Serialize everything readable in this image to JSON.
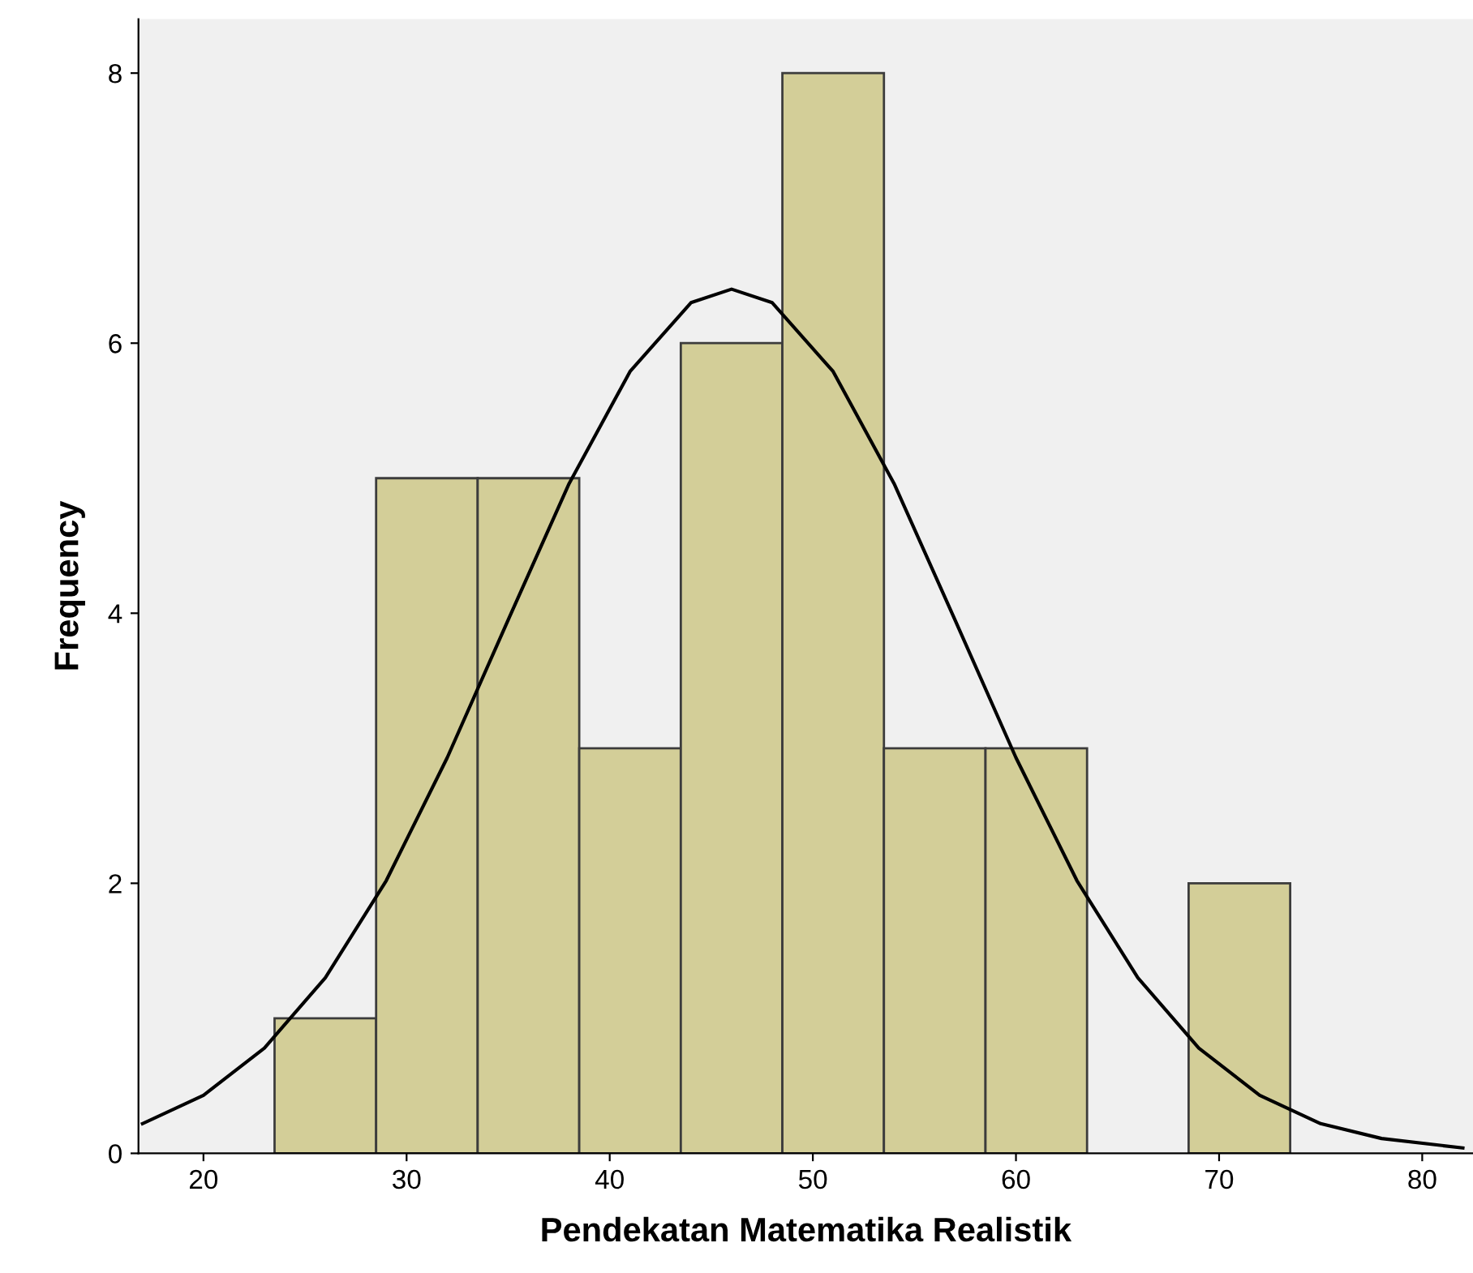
{
  "chart_data": {
    "type": "histogram",
    "xlabel": "Pendekatan Matematika Realistik",
    "ylabel": "Frequency",
    "bins": [
      23.5,
      28.5,
      33.5,
      38.5,
      43.5,
      48.5,
      53.5,
      58.5,
      63.5,
      68.5,
      73.5
    ],
    "values": [
      1,
      5,
      5,
      3,
      6,
      8,
      3,
      3,
      0,
      2
    ],
    "color": "#d3ce98",
    "series": [
      {
        "type": "line",
        "color": "#000000",
        "x": [
          17,
          20,
          23,
          26,
          29,
          32,
          35,
          38,
          41,
          44,
          46,
          48,
          51,
          54,
          57,
          60,
          63,
          66,
          69,
          72,
          75,
          78,
          82
        ],
        "values": [
          0.22,
          0.43,
          0.78,
          1.3,
          2.02,
          2.93,
          3.95,
          4.96,
          5.79,
          6.3,
          6.4,
          6.3,
          5.79,
          4.96,
          3.95,
          2.93,
          2.02,
          1.3,
          0.78,
          0.43,
          0.22,
          0.11,
          0.04
        ]
      }
    ],
    "xlim": [
      16.8,
      82.5
    ],
    "xticks": [
      20,
      30,
      40,
      50,
      60,
      70,
      80
    ],
    "ylim": [
      0,
      8.4
    ],
    "yticks": [
      0,
      2,
      4,
      6,
      8
    ],
    "grid": false,
    "legend": false,
    "marker": "none",
    "line_style": "solid"
  }
}
